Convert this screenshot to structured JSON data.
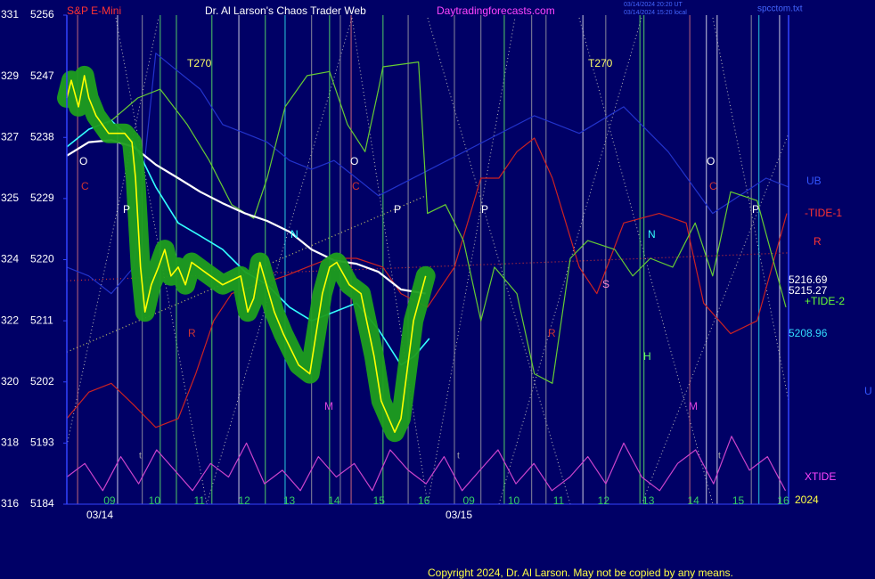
{
  "chart_data": {
    "type": "line",
    "symbol": "S&P E-Mini",
    "title": "Dr. Al Larson's Chaos Trader Web",
    "site": "Daytradingforecasts.com",
    "stamps": [
      "03/14/2024 20:20 UT",
      "03/14/2024 15:20 local"
    ],
    "file": "spcctom.txt",
    "copyright": "Copyright 2024, Dr. Al Larson. May not be copied by any means.",
    "categories": [
      "09",
      "10",
      "11",
      "12",
      "13",
      "14",
      "15",
      "16",
      "09",
      "10",
      "11",
      "12",
      "13",
      "14",
      "15",
      "16"
    ],
    "dates": [
      "03/14",
      "03/15"
    ],
    "xlim": [
      -0.95,
      15.12
    ],
    "ylim": [
      5184,
      5256
    ],
    "yticks": [
      5256,
      5247,
      5238,
      5229,
      5220,
      5211,
      5202,
      5193,
      5184
    ],
    "left_scale": [
      "331",
      "329",
      "327",
      "325",
      "324",
      "322",
      "320",
      "318",
      "316"
    ],
    "annotations": [
      "T270",
      "T270",
      "O",
      "O",
      "O",
      "C",
      "C",
      "C",
      "P",
      "P",
      "P",
      "P",
      "N",
      "N",
      "R",
      "R",
      "S",
      "H",
      "M",
      "M",
      "t",
      "t",
      "t"
    ],
    "right_labels": [
      "UB",
      "-TIDE-1",
      "R",
      "5216.69",
      "5215.27",
      "+TIDE-2",
      "5208.96",
      "U",
      "XTIDE",
      "2024"
    ],
    "vertical_lines": [
      {
        "x": -0.71,
        "color": "#f08080"
      },
      {
        "x": 0.18,
        "color": "#ffffff"
      },
      {
        "x": 0.73,
        "color": "#aaaaaa"
      },
      {
        "x": 1.13,
        "color": "#66ff66"
      },
      {
        "x": 1.49,
        "color": "#66ff66"
      },
      {
        "x": 2.28,
        "color": "#66ff66"
      },
      {
        "x": 2.88,
        "color": "#ffffff"
      },
      {
        "x": 3.47,
        "color": "#66ff66"
      },
      {
        "x": 3.91,
        "color": "#33ffff"
      },
      {
        "x": 4.5,
        "color": "#aaaaaa"
      },
      {
        "x": 4.9,
        "color": "#66ff66"
      },
      {
        "x": 5.14,
        "color": "#aaaaaa"
      },
      {
        "x": 5.38,
        "color": "#ff8080"
      },
      {
        "x": 6.09,
        "color": "#66ff66"
      },
      {
        "x": 6.65,
        "color": "#aaaaaa"
      },
      {
        "x": 7.68,
        "color": "#aaaaaa"
      },
      {
        "x": 8.27,
        "color": "#aaaaaa"
      },
      {
        "x": 8.79,
        "color": "#66ff66"
      },
      {
        "x": 9.4,
        "color": "#aaaaaa"
      },
      {
        "x": 9.72,
        "color": "#aaaaaa"
      },
      {
        "x": 10.54,
        "color": "#ffffff"
      },
      {
        "x": 11.05,
        "color": "#aaaaaa"
      },
      {
        "x": 11.81,
        "color": "#66ff66"
      },
      {
        "x": 11.9,
        "color": "#66ff66"
      },
      {
        "x": 12.92,
        "color": "#f08080"
      },
      {
        "x": 13.29,
        "color": "#ffffff"
      },
      {
        "x": 13.53,
        "color": "#ffffff"
      },
      {
        "x": 14.29,
        "color": "#aaaaaa"
      },
      {
        "x": 14.46,
        "color": "#33ffff"
      },
      {
        "x": 14.92,
        "color": "#ffffff"
      }
    ],
    "trend_lines": [
      {
        "x": [
          -0.95,
          7.04
        ],
        "values": [
          5206.4,
          5229.4
        ],
        "color": "#cccc66"
      },
      {
        "x": [
          -0.95,
          15.12
        ],
        "values": [
          5216.9,
          5221.0
        ],
        "color": "#cc3333"
      }
    ],
    "series": [
      {
        "color": "#cc44cc",
        "width": 1.2,
        "x": [
          -0.95,
          -0.55,
          -0.15,
          0.25,
          0.65,
          1.05,
          1.45,
          1.85,
          2.25,
          2.65,
          3.05,
          3.45,
          3.85,
          4.25,
          4.65,
          5.05,
          5.45,
          5.85,
          6.25,
          6.65,
          7.05,
          7.45,
          7.85,
          8.25,
          8.65,
          9.05,
          9.45,
          9.85,
          10.25,
          10.65,
          11.05,
          11.45,
          11.85,
          12.25,
          12.65,
          13.05,
          13.45,
          13.85,
          14.25,
          14.65,
          15.05
        ],
        "values": [
          5188,
          5190,
          5186,
          5191,
          5187,
          5192,
          5189,
          5186,
          5190,
          5188,
          5193,
          5187,
          5189,
          5186,
          5191,
          5188,
          5190,
          5186,
          5192,
          5189,
          5187,
          5191,
          5186,
          5189,
          5192,
          5187,
          5190,
          5186,
          5188,
          5191,
          5187,
          5193,
          5188,
          5186,
          5190,
          5192,
          5187,
          5194,
          5189,
          5191,
          5186
        ]
      },
      {
        "color": "#2233cc",
        "width": 1.2,
        "x": [
          -0.95,
          -0.46,
          0.04,
          0.54,
          1.03,
          1.53,
          2.02,
          2.52,
          3.02,
          3.51,
          4.01,
          4.5,
          5.0,
          5.5,
          5.99,
          9.46,
          10.46,
          11.45,
          12.44,
          13.43,
          14.62,
          15.12
        ],
        "values": [
          5218.9,
          5217.6,
          5215.0,
          5218.9,
          5250.4,
          5247.7,
          5245.1,
          5239.9,
          5238.6,
          5237.3,
          5234.6,
          5233.3,
          5234.6,
          5232.0,
          5229.4,
          5241.2,
          5238.6,
          5242.5,
          5235.9,
          5226.8,
          5232.0,
          5230.7
        ]
      },
      {
        "color": "#cc2222",
        "width": 1.2,
        "x": [
          -0.95,
          -0.46,
          0.04,
          0.54,
          1.03,
          1.53,
          1.92,
          2.32,
          2.72,
          3.31,
          3.91,
          4.4,
          4.9,
          5.5,
          6.09,
          6.49,
          7.08,
          7.68,
          8.27,
          8.67,
          9.07,
          9.46,
          9.86,
          10.46,
          10.85,
          11.45,
          12.24,
          12.84,
          13.23,
          13.83,
          14.42,
          15.08
        ],
        "values": [
          5196.6,
          5200.5,
          5201.8,
          5198.6,
          5195.3,
          5196.6,
          5203.2,
          5211.0,
          5215.0,
          5216.3,
          5217.6,
          5218.9,
          5220.2,
          5220.2,
          5218.9,
          5215.0,
          5213.0,
          5218.9,
          5232.0,
          5232.0,
          5235.9,
          5237.9,
          5232.0,
          5218.9,
          5215.0,
          5225.4,
          5226.8,
          5225.4,
          5213.6,
          5209.1,
          5211.0,
          5226.8
        ]
      },
      {
        "color": "#66cc33",
        "width": 1.2,
        "x": [
          -0.06,
          0.63,
          1.13,
          1.73,
          2.22,
          2.72,
          3.21,
          3.51,
          3.91,
          4.4,
          4.9,
          5.3,
          5.69,
          5.99,
          6.09,
          6.88,
          7.08,
          7.48,
          7.88,
          8.27,
          8.57,
          9.07,
          9.46,
          9.86,
          10.26,
          10.65,
          11.25,
          11.65,
          12.04,
          12.54,
          13.04,
          13.43,
          13.83,
          14.42,
          15.06
        ],
        "values": [
          5239.9,
          5243.8,
          5245.1,
          5239.9,
          5234.6,
          5228.1,
          5226.1,
          5232.0,
          5242.5,
          5247.1,
          5247.7,
          5239.9,
          5235.9,
          5245.1,
          5248.4,
          5249.1,
          5226.8,
          5228.1,
          5222.8,
          5211.0,
          5218.9,
          5215.0,
          5203.2,
          5201.8,
          5220.2,
          5222.8,
          5221.5,
          5217.6,
          5220.2,
          5218.9,
          5225.4,
          5217.6,
          5230.0,
          5228.7,
          5213.0
        ]
      },
      {
        "color": "#ffffff",
        "width": 2.2,
        "x": [
          -0.95,
          -0.46,
          0.04,
          0.54,
          1.03,
          1.53,
          2.02,
          2.52,
          3.02,
          3.51,
          4.01,
          4.5,
          5.0,
          5.5,
          5.99,
          6.49,
          7.04
        ],
        "values": [
          5235.3,
          5237.3,
          5237.6,
          5236.6,
          5234.0,
          5232.0,
          5230.0,
          5228.3,
          5226.8,
          5225.7,
          5224.1,
          5221.5,
          5219.9,
          5219.4,
          5218.2,
          5215.6,
          5215.0
        ]
      },
      {
        "color": "#33ffff",
        "width": 1.6,
        "x": [
          -0.95,
          -0.46,
          0.04,
          0.54,
          1.03,
          1.53,
          2.02,
          2.52,
          3.02,
          3.51,
          4.01,
          4.5,
          5.0,
          5.5,
          5.99,
          6.49,
          6.79,
          7.12
        ],
        "values": [
          5236.6,
          5239.2,
          5240.5,
          5237.3,
          5230.7,
          5225.4,
          5223.5,
          5221.5,
          5218.2,
          5216.3,
          5213.0,
          5211.0,
          5212.3,
          5213.6,
          5209.7,
          5204.5,
          5205.8,
          5208.4
        ]
      },
      {
        "color": "#ffff00",
        "halo_color": "#1e9e1e",
        "width": 1.6,
        "x": [
          -0.95,
          -0.85,
          -0.69,
          -0.56,
          -0.46,
          -0.3,
          -0.02,
          0.34,
          0.5,
          0.58,
          0.69,
          0.79,
          0.93,
          1.09,
          1.23,
          1.37,
          1.53,
          1.69,
          1.83,
          2.12,
          2.52,
          2.92,
          3.08,
          3.21,
          3.35,
          3.67,
          3.87,
          4.21,
          4.46,
          4.74,
          4.9,
          5.06,
          5.34,
          5.6,
          5.89,
          6.05,
          6.35,
          6.49,
          6.77,
          7.04
        ],
        "values": [
          5243.8,
          5246.4,
          5242.5,
          5247.1,
          5243.8,
          5241.2,
          5238.6,
          5238.6,
          5237.3,
          5232.0,
          5218.9,
          5212.3,
          5216.3,
          5218.9,
          5221.5,
          5217.6,
          5218.9,
          5216.3,
          5219.6,
          5218.2,
          5216.3,
          5217.6,
          5212.3,
          5214.3,
          5219.6,
          5212.3,
          5209.1,
          5204.5,
          5203.2,
          5215.0,
          5218.9,
          5219.6,
          5216.3,
          5215.0,
          5205.8,
          5199.2,
          5194.6,
          5196.6,
          5211.0,
          5217.6
        ]
      }
    ]
  }
}
